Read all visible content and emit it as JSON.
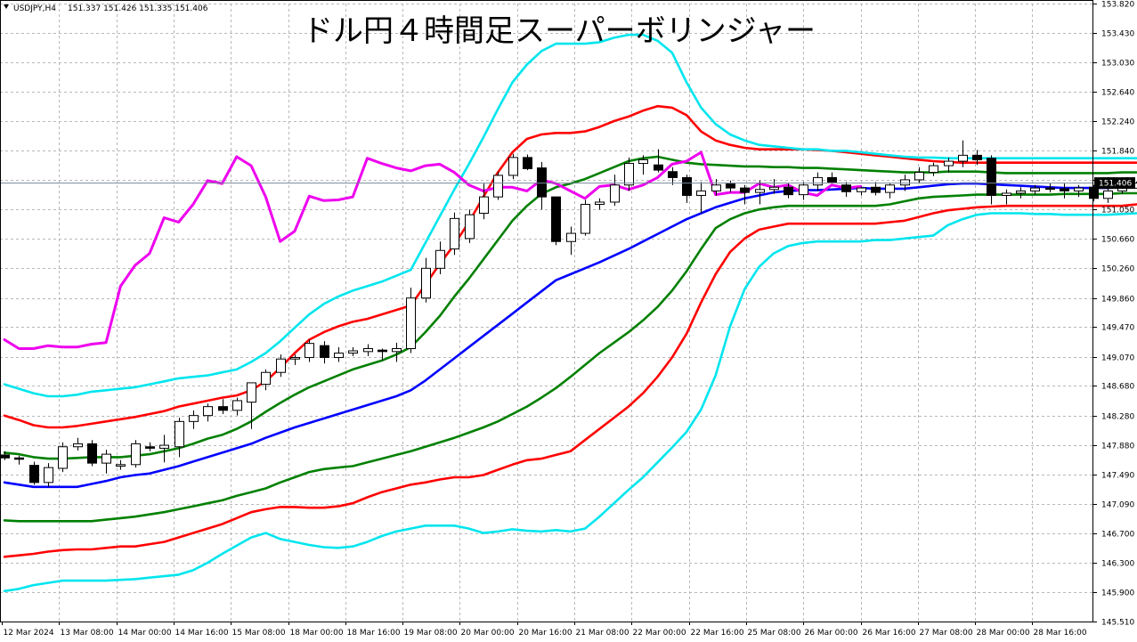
{
  "chart_data": {
    "type": "candlestick",
    "title": "ドル円４時間足スーパーボリンジャー",
    "symbol_label": "USDJPY,H4",
    "ohlc_label": "151.337 151.426 151.335 151.406",
    "current_price_label": "151.406",
    "current_price": 151.406,
    "ylim": [
      145.51,
      153.82
    ],
    "yticks": [
      "145.510",
      "145.900",
      "146.300",
      "146.700",
      "147.090",
      "147.490",
      "147.880",
      "148.280",
      "148.680",
      "149.070",
      "149.470",
      "149.860",
      "150.260",
      "150.660",
      "151.050",
      "151.450",
      "151.840",
      "152.240",
      "152.640",
      "153.030",
      "153.430",
      "153.820"
    ],
    "xticks": [
      "12 Mar 2024",
      "13 Mar 08:00",
      "14 Mar 00:00",
      "14 Mar 16:00",
      "15 Mar 08:00",
      "18 Mar 00:00",
      "18 Mar 16:00",
      "19 Mar 08:00",
      "20 Mar 00:00",
      "20 Mar 16:00",
      "21 Mar 08:00",
      "22 Mar 00:00",
      "22 Mar 16:00",
      "25 Mar 08:00",
      "26 Mar 00:00",
      "26 Mar 16:00",
      "27 Mar 08:00",
      "28 Mar 00:00",
      "28 Mar 16:00"
    ],
    "candles": [
      [
        147.75,
        147.8,
        147.68,
        147.71
      ],
      [
        147.71,
        147.74,
        147.62,
        147.7
      ],
      [
        147.61,
        147.66,
        147.35,
        147.38
      ],
      [
        147.38,
        147.64,
        147.32,
        147.58
      ],
      [
        147.57,
        147.92,
        147.52,
        147.86
      ],
      [
        147.86,
        147.98,
        147.81,
        147.9
      ],
      [
        147.9,
        147.95,
        147.6,
        147.64
      ],
      [
        147.64,
        147.82,
        147.5,
        147.76
      ],
      [
        147.6,
        147.68,
        147.55,
        147.62
      ],
      [
        147.62,
        147.95,
        147.58,
        147.9
      ],
      [
        147.86,
        147.92,
        147.8,
        147.84
      ],
      [
        147.84,
        148.02,
        147.65,
        147.88
      ],
      [
        147.86,
        148.25,
        147.72,
        148.2
      ],
      [
        148.2,
        148.35,
        148.1,
        148.28
      ],
      [
        148.28,
        148.44,
        148.2,
        148.4
      ],
      [
        148.4,
        148.5,
        148.3,
        148.35
      ],
      [
        148.35,
        148.52,
        148.28,
        148.48
      ],
      [
        148.46,
        148.72,
        148.1,
        148.72
      ],
      [
        148.7,
        148.9,
        148.62,
        148.86
      ],
      [
        148.86,
        149.1,
        148.8,
        149.04
      ],
      [
        149.04,
        149.1,
        148.96,
        149.06
      ],
      [
        149.06,
        149.3,
        149.0,
        149.25
      ],
      [
        149.22,
        149.28,
        148.98,
        149.06
      ],
      [
        149.06,
        149.2,
        149.0,
        149.12
      ],
      [
        149.12,
        149.2,
        149.08,
        149.15
      ],
      [
        149.14,
        149.24,
        149.08,
        149.18
      ],
      [
        149.16,
        149.18,
        149.02,
        149.14
      ],
      [
        149.14,
        149.26,
        149.0,
        149.18
      ],
      [
        149.18,
        150.0,
        149.12,
        149.86
      ],
      [
        149.86,
        150.4,
        149.8,
        150.26
      ],
      [
        150.26,
        150.62,
        150.18,
        150.5
      ],
      [
        150.52,
        151.01,
        150.44,
        150.93
      ],
      [
        150.66,
        151.05,
        150.6,
        150.98
      ],
      [
        151.0,
        151.4,
        150.92,
        151.22
      ],
      [
        151.22,
        151.56,
        151.18,
        151.51
      ],
      [
        151.51,
        151.8,
        151.46,
        151.75
      ],
      [
        151.75,
        151.79,
        151.58,
        151.6
      ],
      [
        151.61,
        151.69,
        151.05,
        151.22
      ],
      [
        151.22,
        151.22,
        150.57,
        150.62
      ],
      [
        150.62,
        150.82,
        150.44,
        150.73
      ],
      [
        150.73,
        151.18,
        150.7,
        151.12
      ],
      [
        151.12,
        151.2,
        151.05,
        151.15
      ],
      [
        151.15,
        151.52,
        151.1,
        151.38
      ],
      [
        151.38,
        151.75,
        151.3,
        151.67
      ],
      [
        151.67,
        151.78,
        151.52,
        151.72
      ],
      [
        151.65,
        151.86,
        151.55,
        151.58
      ],
      [
        151.56,
        151.62,
        151.38,
        151.48
      ],
      [
        151.48,
        151.52,
        151.14,
        151.24
      ],
      [
        151.24,
        151.42,
        151.0,
        151.3
      ],
      [
        151.3,
        151.46,
        151.24,
        151.38
      ],
      [
        151.4,
        151.44,
        151.28,
        151.34
      ],
      [
        151.34,
        151.38,
        151.12,
        151.28
      ],
      [
        151.28,
        151.44,
        151.12,
        151.32
      ],
      [
        151.32,
        151.46,
        151.26,
        151.35
      ],
      [
        151.35,
        151.4,
        151.2,
        151.25
      ],
      [
        151.25,
        151.42,
        151.18,
        151.38
      ],
      [
        151.38,
        151.55,
        151.3,
        151.48
      ],
      [
        151.48,
        151.55,
        151.4,
        151.42
      ],
      [
        151.38,
        151.42,
        151.22,
        151.29
      ],
      [
        151.29,
        151.36,
        151.24,
        151.34
      ],
      [
        151.35,
        151.42,
        151.24,
        151.28
      ],
      [
        151.28,
        151.4,
        151.2,
        151.38
      ],
      [
        151.38,
        151.52,
        151.3,
        151.45
      ],
      [
        151.45,
        151.62,
        151.4,
        151.55
      ],
      [
        151.55,
        151.68,
        151.5,
        151.64
      ],
      [
        151.64,
        151.75,
        151.55,
        151.7
      ],
      [
        151.7,
        151.98,
        151.62,
        151.78
      ],
      [
        151.78,
        151.85,
        151.65,
        151.72
      ],
      [
        151.74,
        151.78,
        151.12,
        151.24
      ],
      [
        151.24,
        151.32,
        151.12,
        151.27
      ],
      [
        151.27,
        151.35,
        151.2,
        151.3
      ],
      [
        151.3,
        151.38,
        151.25,
        151.34
      ],
      [
        151.34,
        151.4,
        151.28,
        151.33
      ],
      [
        151.33,
        151.4,
        151.2,
        151.3
      ],
      [
        151.3,
        151.38,
        151.22,
        151.34
      ],
      [
        151.35,
        151.38,
        151.16,
        151.2
      ],
      [
        151.2,
        151.36,
        151.14,
        151.3
      ],
      [
        151.3,
        151.4,
        151.26,
        151.38
      ],
      [
        151.337,
        151.426,
        151.335,
        151.406
      ]
    ],
    "series": [
      {
        "name": "",
        "color": "#0000ff",
        "values": [
          147.38,
          147.35,
          147.32,
          147.32,
          147.32,
          147.32,
          147.36,
          147.4,
          147.45,
          147.48,
          147.5,
          147.55,
          147.6,
          147.66,
          147.72,
          147.78,
          147.84,
          147.9,
          147.98,
          148.05,
          148.12,
          148.18,
          148.24,
          148.3,
          148.36,
          148.42,
          148.48,
          148.54,
          148.62,
          148.75,
          148.9,
          149.05,
          149.2,
          149.35,
          149.5,
          149.65,
          149.8,
          149.95,
          150.1,
          150.18,
          150.26,
          150.34,
          150.43,
          150.52,
          150.62,
          150.72,
          150.82,
          150.92,
          151.0,
          151.08,
          151.14,
          151.2,
          151.24,
          151.28,
          151.3,
          151.31,
          151.31,
          151.32,
          151.33,
          151.34,
          151.33,
          151.33,
          151.33,
          151.35,
          151.37,
          151.39,
          151.4,
          151.4,
          151.39,
          151.38,
          151.37,
          151.36,
          151.35,
          151.34,
          151.34,
          151.34,
          151.34,
          151.35,
          151.36
        ]
      },
      {
        "name": "",
        "color": "#008000",
        "values": [
          147.78,
          147.76,
          147.72,
          147.7,
          147.7,
          147.71,
          147.72,
          147.72,
          147.72,
          147.74,
          147.76,
          147.8,
          147.84,
          147.9,
          147.97,
          148.02,
          148.1,
          148.2,
          148.33,
          148.45,
          148.56,
          148.66,
          148.74,
          148.82,
          148.9,
          148.96,
          149.02,
          149.1,
          149.2,
          149.4,
          149.62,
          149.88,
          150.12,
          150.38,
          150.64,
          150.9,
          151.1,
          151.26,
          151.35,
          151.4,
          151.46,
          151.54,
          151.62,
          151.7,
          151.74,
          151.76,
          151.72,
          151.68,
          151.66,
          151.65,
          151.64,
          151.63,
          151.63,
          151.62,
          151.62,
          151.61,
          151.61,
          151.6,
          151.59,
          151.58,
          151.57,
          151.56,
          151.55,
          151.55,
          151.55,
          151.56,
          151.56,
          151.56,
          151.55,
          151.54,
          151.54,
          151.54,
          151.54,
          151.54,
          151.54,
          151.54,
          151.54,
          151.55,
          151.55
        ]
      },
      {
        "name": "",
        "color": "#008000",
        "values": [
          146.87,
          146.86,
          146.86,
          146.86,
          146.86,
          146.86,
          146.86,
          146.88,
          146.9,
          146.92,
          146.95,
          146.98,
          147.02,
          147.06,
          147.1,
          147.14,
          147.2,
          147.25,
          147.3,
          147.38,
          147.45,
          147.52,
          147.56,
          147.58,
          147.6,
          147.65,
          147.7,
          147.75,
          147.8,
          147.86,
          147.92,
          147.98,
          148.05,
          148.12,
          148.2,
          148.3,
          148.4,
          148.52,
          148.65,
          148.8,
          148.96,
          149.12,
          149.26,
          149.4,
          149.56,
          149.74,
          149.96,
          150.22,
          150.52,
          150.8,
          150.92,
          151.0,
          151.05,
          151.08,
          151.1,
          151.1,
          151.1,
          151.1,
          151.1,
          151.1,
          151.1,
          151.12,
          151.16,
          151.2,
          151.22,
          151.23,
          151.24,
          151.25,
          151.25,
          151.25,
          151.25,
          151.25,
          151.25,
          151.26,
          151.26,
          151.26,
          151.26,
          151.27,
          151.27
        ]
      },
      {
        "name": "",
        "color": "#ff0000",
        "values": [
          148.28,
          148.22,
          148.15,
          148.12,
          148.12,
          148.14,
          148.17,
          148.2,
          148.23,
          148.26,
          148.3,
          148.34,
          148.4,
          148.44,
          148.48,
          148.52,
          148.55,
          148.62,
          148.74,
          148.92,
          149.12,
          149.3,
          149.4,
          149.48,
          149.54,
          149.58,
          149.64,
          149.7,
          149.76,
          150.04,
          150.32,
          150.58,
          150.88,
          151.22,
          151.55,
          151.82,
          152.0,
          152.06,
          152.08,
          152.08,
          152.1,
          152.16,
          152.24,
          152.3,
          152.38,
          152.44,
          152.42,
          152.32,
          152.1,
          151.98,
          151.92,
          151.88,
          151.86,
          151.86,
          151.86,
          151.86,
          151.85,
          151.84,
          151.82,
          151.8,
          151.78,
          151.76,
          151.74,
          151.72,
          151.7,
          151.69,
          151.68,
          151.68,
          151.68,
          151.68,
          151.68,
          151.68,
          151.68,
          151.68,
          151.68,
          151.68,
          151.68,
          151.68,
          151.68
        ]
      },
      {
        "name": "",
        "color": "#ff0000",
        "values": [
          146.38,
          146.4,
          146.42,
          146.45,
          146.47,
          146.48,
          146.48,
          146.5,
          146.52,
          146.52,
          146.55,
          146.58,
          146.64,
          146.7,
          146.76,
          146.82,
          146.9,
          146.98,
          147.02,
          147.05,
          147.05,
          147.04,
          147.04,
          147.06,
          147.1,
          147.18,
          147.25,
          147.3,
          147.35,
          147.38,
          147.42,
          147.45,
          147.45,
          147.48,
          147.55,
          147.62,
          147.68,
          147.7,
          147.75,
          147.8,
          147.95,
          148.1,
          148.25,
          148.4,
          148.58,
          148.8,
          149.06,
          149.38,
          149.8,
          150.18,
          150.48,
          150.66,
          150.78,
          150.82,
          150.86,
          150.86,
          150.86,
          150.86,
          150.86,
          150.86,
          150.86,
          150.88,
          150.9,
          150.95,
          151.0,
          151.04,
          151.06,
          151.08,
          151.09,
          151.1,
          151.1,
          151.1,
          151.1,
          151.1,
          151.1,
          151.1,
          151.1,
          151.1,
          151.12
        ]
      },
      {
        "name": "",
        "color": "#00e5ee",
        "values": [
          148.7,
          148.64,
          148.58,
          148.54,
          148.54,
          148.56,
          148.6,
          148.62,
          148.64,
          148.66,
          148.7,
          148.74,
          148.78,
          148.8,
          148.82,
          148.86,
          148.9,
          149.0,
          149.12,
          149.28,
          149.46,
          149.64,
          149.78,
          149.88,
          149.96,
          150.02,
          150.08,
          150.16,
          150.24,
          150.6,
          150.96,
          151.32,
          151.66,
          152.02,
          152.4,
          152.76,
          153.0,
          153.18,
          153.28,
          153.28,
          153.28,
          153.3,
          153.36,
          153.4,
          153.4,
          153.32,
          153.16,
          152.76,
          152.42,
          152.2,
          152.06,
          151.98,
          151.92,
          151.9,
          151.88,
          151.86,
          151.86,
          151.84,
          151.84,
          151.82,
          151.8,
          151.78,
          151.76,
          151.75,
          151.75,
          151.74,
          151.74,
          151.74,
          151.74,
          151.74,
          151.74,
          151.74,
          151.74,
          151.74,
          151.74,
          151.74,
          151.74,
          151.74,
          151.74
        ]
      },
      {
        "name": "",
        "color": "#00e5ee",
        "values": [
          145.92,
          145.95,
          146.0,
          146.03,
          146.06,
          146.06,
          146.06,
          146.06,
          146.07,
          146.08,
          146.1,
          146.12,
          146.14,
          146.2,
          146.3,
          146.42,
          146.53,
          146.64,
          146.7,
          146.62,
          146.58,
          146.54,
          146.51,
          146.5,
          146.52,
          146.58,
          146.66,
          146.72,
          146.76,
          146.8,
          146.8,
          146.8,
          146.76,
          146.7,
          146.72,
          146.75,
          146.73,
          146.72,
          146.74,
          146.72,
          146.76,
          146.92,
          147.1,
          147.28,
          147.45,
          147.65,
          147.85,
          148.06,
          148.36,
          148.82,
          149.48,
          149.98,
          150.28,
          150.46,
          150.56,
          150.6,
          150.62,
          150.62,
          150.62,
          150.62,
          150.64,
          150.64,
          150.66,
          150.68,
          150.7,
          150.84,
          150.92,
          150.98,
          151.0,
          151.0,
          151.0,
          150.99,
          150.99,
          150.98,
          150.98,
          150.98,
          150.98,
          150.99,
          151.0
        ]
      },
      {
        "name": "",
        "color": "#ee00ee",
        "values": [
          149.3,
          149.18,
          149.18,
          149.22,
          149.2,
          149.2,
          149.24,
          149.26,
          150.02,
          150.3,
          150.46,
          150.94,
          150.88,
          151.12,
          151.44,
          151.4,
          151.76,
          151.64,
          151.22,
          150.62,
          150.76,
          151.23,
          151.17,
          151.18,
          151.22,
          151.74,
          151.67,
          151.61,
          151.57,
          151.64,
          151.66,
          151.55,
          151.38,
          151.3,
          151.35,
          151.35,
          151.3,
          151.45,
          151.4,
          151.3,
          151.2,
          151.36,
          151.38,
          151.32,
          151.38,
          151.48,
          151.66,
          151.7,
          151.82,
          151.25,
          151.28,
          151.28,
          151.4,
          151.35,
          151.38,
          151.28,
          151.24,
          151.38,
          151.34,
          151.36
        ]
      }
    ]
  }
}
